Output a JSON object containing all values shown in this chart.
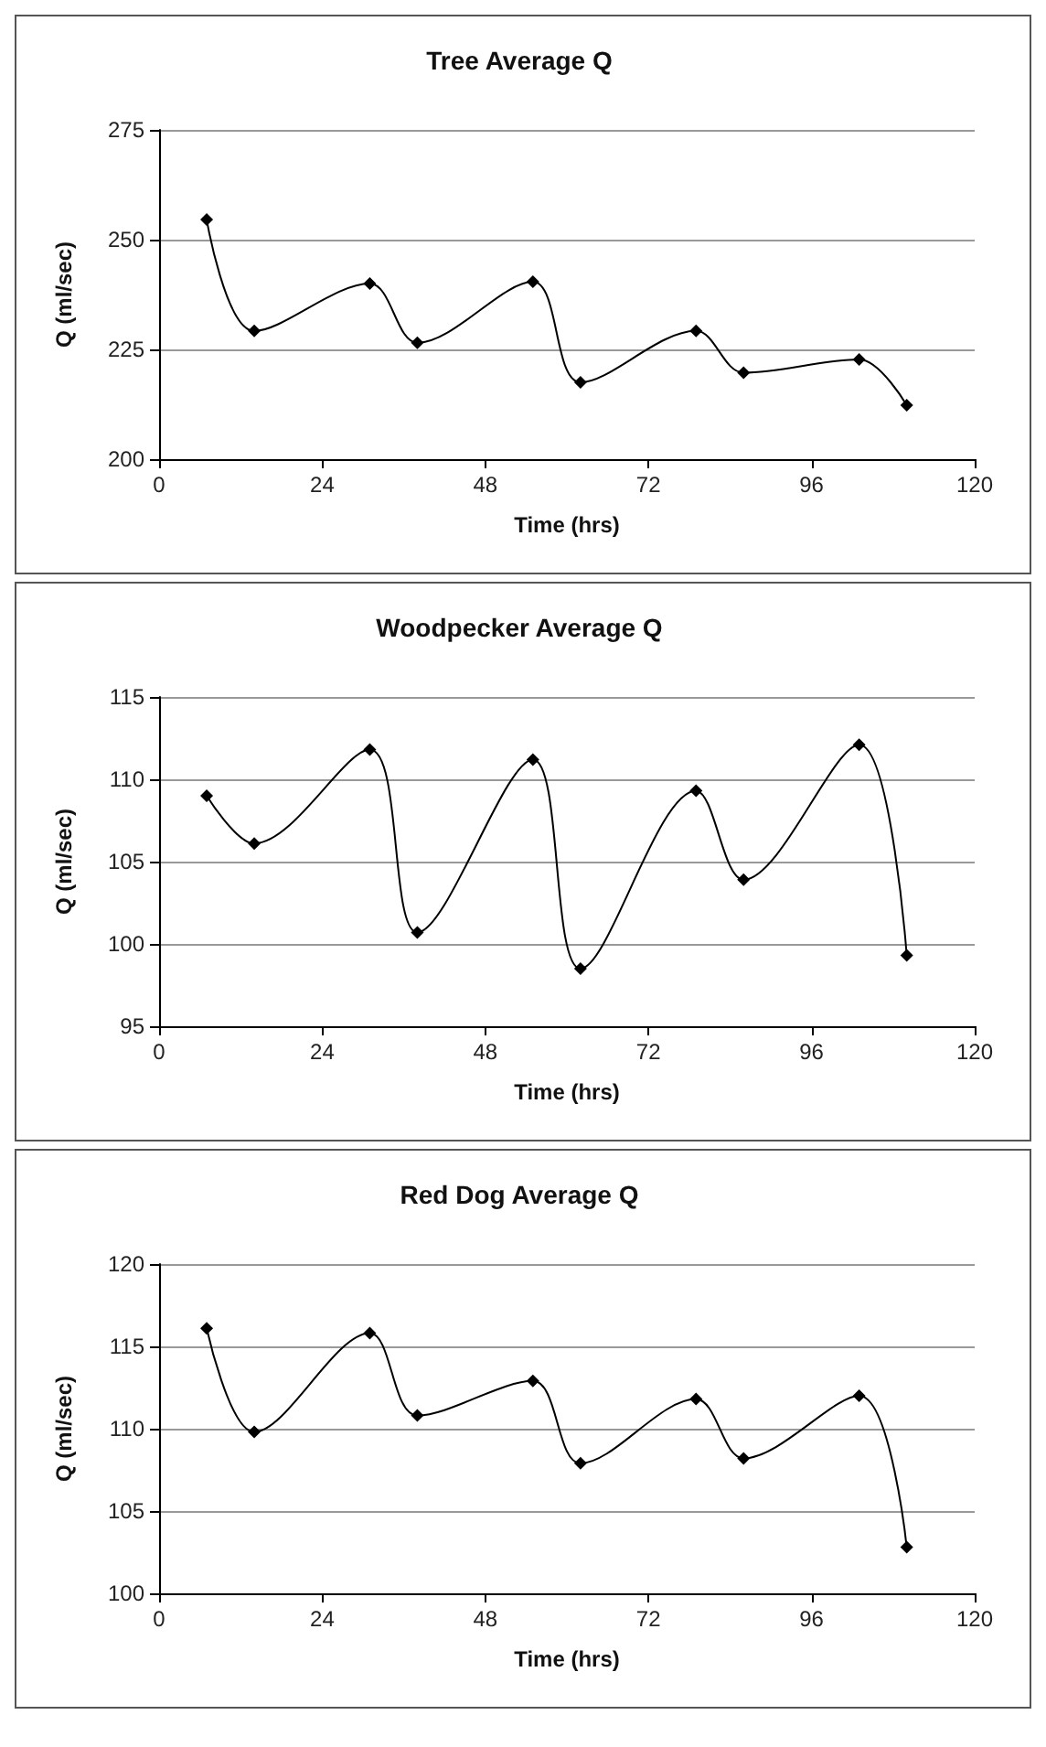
{
  "chart_data": [
    {
      "type": "line",
      "title": "Tree Average Q",
      "xlabel": "Time (hrs)",
      "ylabel": "Q (ml/sec)",
      "xlim": [
        0,
        120
      ],
      "xticks": [
        0,
        24,
        48,
        72,
        96,
        120
      ],
      "ylim": [
        200,
        275
      ],
      "yticks": [
        200,
        225,
        250,
        275
      ],
      "grid": "y",
      "marker": "diamond",
      "x": [
        7,
        14,
        31,
        38,
        55,
        62,
        79,
        86,
        103,
        110
      ],
      "series": [
        {
          "color": "#000000",
          "values": [
            254.6,
            229.2,
            240,
            226.5,
            240.4,
            217.5,
            229.2,
            219.7,
            222.7,
            212.3
          ]
        }
      ]
    },
    {
      "type": "line",
      "title": "Woodpecker Average Q",
      "xlabel": "Time (hrs)",
      "ylabel": "Q (ml/sec)",
      "xlim": [
        0,
        120
      ],
      "xticks": [
        0,
        24,
        48,
        72,
        96,
        120
      ],
      "ylim": [
        95,
        115
      ],
      "yticks": [
        95,
        100,
        105,
        110,
        115
      ],
      "grid": "y",
      "marker": "diamond",
      "x": [
        7,
        14,
        31,
        38,
        55,
        62,
        79,
        86,
        103,
        110
      ],
      "series": [
        {
          "color": "#000000",
          "values": [
            109.0,
            106.1,
            111.8,
            100.7,
            111.2,
            98.5,
            109.3,
            103.9,
            112.1,
            99.3
          ]
        }
      ]
    },
    {
      "type": "line",
      "title": "Red Dog Average Q",
      "xlabel": "Time (hrs)",
      "ylabel": "Q (ml/sec)",
      "xlim": [
        0,
        120
      ],
      "xticks": [
        0,
        24,
        48,
        72,
        96,
        120
      ],
      "ylim": [
        100,
        120
      ],
      "yticks": [
        100,
        105,
        110,
        115,
        120
      ],
      "grid": "y",
      "marker": "diamond",
      "x": [
        7,
        14,
        31,
        38,
        55,
        62,
        79,
        86,
        103,
        110
      ],
      "series": [
        {
          "color": "#000000",
          "values": [
            116.1,
            109.8,
            115.8,
            110.8,
            112.9,
            107.9,
            111.8,
            108.2,
            112.0,
            102.8
          ]
        }
      ]
    }
  ]
}
